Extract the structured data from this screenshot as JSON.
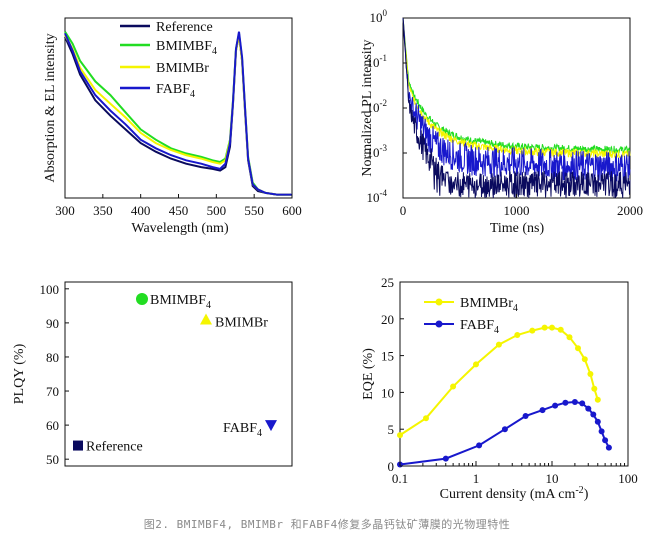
{
  "caption": "图2. BMIMBF4, BMIMBr 和FABF4修复多晶钙钛矿薄膜的光物理特性",
  "colors": {
    "reference": "#0a0a5e",
    "bmimbf4": "#22dd22",
    "bmimbr": "#f5f500",
    "fabf4": "#1818cc"
  },
  "chart_data": [
    {
      "id": "absorption_el",
      "type": "line",
      "title": "",
      "xlabel": "Wavelength (nm)",
      "ylabel": "Absorption & EL intensity",
      "xlim": [
        300,
        600
      ],
      "ylim": [
        0,
        1.05
      ],
      "xticks": [
        "300",
        "350",
        "400",
        "450",
        "500",
        "550",
        "600"
      ],
      "legend": [
        "Reference",
        "BMIMBF",
        "BMIMBr",
        "FABF"
      ],
      "legend_sub": [
        "",
        "4",
        "",
        "4"
      ],
      "x": [
        300,
        310,
        320,
        340,
        360,
        380,
        400,
        420,
        440,
        460,
        480,
        495,
        505,
        512,
        518,
        522,
        526,
        530,
        534,
        538,
        542,
        548,
        555,
        565,
        580,
        600
      ],
      "series": [
        {
          "name": "Reference",
          "color_key": "reference",
          "values": [
            0.94,
            0.84,
            0.72,
            0.57,
            0.48,
            0.4,
            0.32,
            0.27,
            0.23,
            0.2,
            0.18,
            0.17,
            0.16,
            0.18,
            0.3,
            0.55,
            0.86,
            0.95,
            0.8,
            0.5,
            0.22,
            0.07,
            0.04,
            0.03,
            0.02,
            0.02
          ]
        },
        {
          "name": "BMIMBF4",
          "color_key": "bmimbf4",
          "values": [
            0.97,
            0.9,
            0.8,
            0.68,
            0.6,
            0.5,
            0.4,
            0.34,
            0.29,
            0.26,
            0.24,
            0.22,
            0.21,
            0.23,
            0.34,
            0.57,
            0.87,
            0.96,
            0.81,
            0.52,
            0.24,
            0.09,
            0.05,
            0.03,
            0.02,
            0.02
          ]
        },
        {
          "name": "BMIMBr",
          "color_key": "bmimbr",
          "values": [
            0.95,
            0.87,
            0.76,
            0.63,
            0.55,
            0.47,
            0.38,
            0.32,
            0.28,
            0.25,
            0.23,
            0.21,
            0.2,
            0.22,
            0.33,
            0.56,
            0.86,
            0.95,
            0.8,
            0.51,
            0.23,
            0.08,
            0.05,
            0.03,
            0.02,
            0.02
          ]
        },
        {
          "name": "FABF4",
          "color_key": "fabf4",
          "values": [
            0.96,
            0.86,
            0.74,
            0.6,
            0.51,
            0.43,
            0.34,
            0.29,
            0.25,
            0.22,
            0.2,
            0.18,
            0.17,
            0.2,
            0.32,
            0.56,
            0.87,
            0.97,
            0.82,
            0.52,
            0.23,
            0.08,
            0.05,
            0.03,
            0.02,
            0.02
          ]
        }
      ]
    },
    {
      "id": "trpl",
      "type": "line",
      "title": "",
      "xlabel": "Time (ns)",
      "ylabel": "Normalized PL intensity",
      "xlim": [
        0,
        2000
      ],
      "ylim_log10": [
        -4,
        0
      ],
      "xticks": [
        "0",
        "1000",
        "2000"
      ],
      "yticks": [
        "10",
        "10",
        "10",
        "10",
        "10"
      ],
      "yticks_exp": [
        "-4",
        "-3",
        "-2",
        "-1",
        "0"
      ],
      "x": [
        0,
        50,
        100,
        200,
        300,
        400,
        500,
        600,
        800,
        1000,
        1200,
        1500,
        1800,
        2000
      ],
      "series": [
        {
          "name": "BMIMBF4",
          "color_key": "bmimbf4",
          "noise": 0.08,
          "log10_values": [
            0,
            -1.4,
            -1.75,
            -2.15,
            -2.4,
            -2.55,
            -2.65,
            -2.72,
            -2.8,
            -2.85,
            -2.88,
            -2.9,
            -2.92,
            -2.93
          ]
        },
        {
          "name": "BMIMBr",
          "color_key": "bmimbr",
          "noise": 0.09,
          "log10_values": [
            0,
            -1.5,
            -1.85,
            -2.25,
            -2.5,
            -2.65,
            -2.75,
            -2.82,
            -2.9,
            -2.95,
            -2.98,
            -3.0,
            -3.02,
            -3.03
          ]
        },
        {
          "name": "FABF4",
          "color_key": "fabf4",
          "noise": 0.35,
          "log10_values": [
            0,
            -1.7,
            -2.1,
            -2.55,
            -2.85,
            -3.0,
            -3.1,
            -3.15,
            -3.2,
            -3.22,
            -3.25,
            -3.28,
            -3.3,
            -3.3
          ]
        },
        {
          "name": "Reference",
          "color_key": "reference",
          "noise": 0.3,
          "log10_values": [
            0,
            -1.9,
            -2.4,
            -3.0,
            -3.4,
            -3.7,
            -3.9,
            -4.0,
            -4.0,
            -4.0,
            -4.0,
            -4.0,
            -4.0,
            -4.0
          ]
        }
      ]
    },
    {
      "id": "plqy",
      "type": "scatter",
      "title": "",
      "xlabel": "",
      "ylabel": "PLQY (%)",
      "ylim": [
        48,
        102
      ],
      "yticks": [
        "50",
        "60",
        "70",
        "80",
        "90",
        "100"
      ],
      "points": [
        {
          "label": "BMIMBF",
          "sub": "4",
          "value": 97,
          "marker": "circle",
          "color_key": "bmimbf4"
        },
        {
          "label": "BMIMBr",
          "sub": "",
          "value": 91,
          "marker": "triangle-up",
          "color_key": "bmimbr"
        },
        {
          "label": "FABF",
          "sub": "4",
          "value": 60,
          "marker": "triangle-down",
          "color_key": "fabf4"
        },
        {
          "label": "Reference",
          "sub": "",
          "value": 54,
          "marker": "square",
          "color_key": "reference"
        }
      ]
    },
    {
      "id": "eqe",
      "type": "line",
      "title": "",
      "xlabel": "Current density (mA cm",
      "xlabel_sup": "-2",
      "xlabel_end": ")",
      "ylabel": "EQE (%)",
      "xscale": "log",
      "xlim_log10": [
        -1,
        2
      ],
      "ylim": [
        0,
        25
      ],
      "xticks": [
        "0.1",
        "1",
        "10",
        "100"
      ],
      "yticks": [
        "0",
        "5",
        "10",
        "15",
        "20",
        "25"
      ],
      "legend": [
        "BMIMBr",
        "FABF"
      ],
      "legend_sub": [
        "4",
        "4"
      ],
      "series": [
        {
          "name": "BMIMBr4",
          "color_key": "bmimbr",
          "x": [
            0.1,
            0.22,
            0.5,
            1.0,
            2.0,
            3.5,
            5.5,
            8.0,
            10,
            13,
            17,
            22,
            27,
            32,
            36,
            40
          ],
          "values": [
            4.2,
            6.5,
            10.8,
            13.8,
            16.5,
            17.8,
            18.4,
            18.8,
            18.8,
            18.5,
            17.5,
            16.0,
            14.5,
            12.5,
            10.5,
            9.0
          ]
        },
        {
          "name": "FABF4",
          "color_key": "fabf4",
          "x": [
            0.1,
            0.4,
            1.1,
            2.4,
            4.5,
            7.5,
            11,
            15,
            20,
            25,
            30,
            35,
            40,
            45,
            50,
            56
          ],
          "values": [
            0.2,
            1.0,
            2.8,
            5.0,
            6.8,
            7.6,
            8.2,
            8.6,
            8.7,
            8.5,
            7.8,
            7.0,
            6.0,
            4.7,
            3.5,
            2.5
          ]
        }
      ]
    }
  ]
}
